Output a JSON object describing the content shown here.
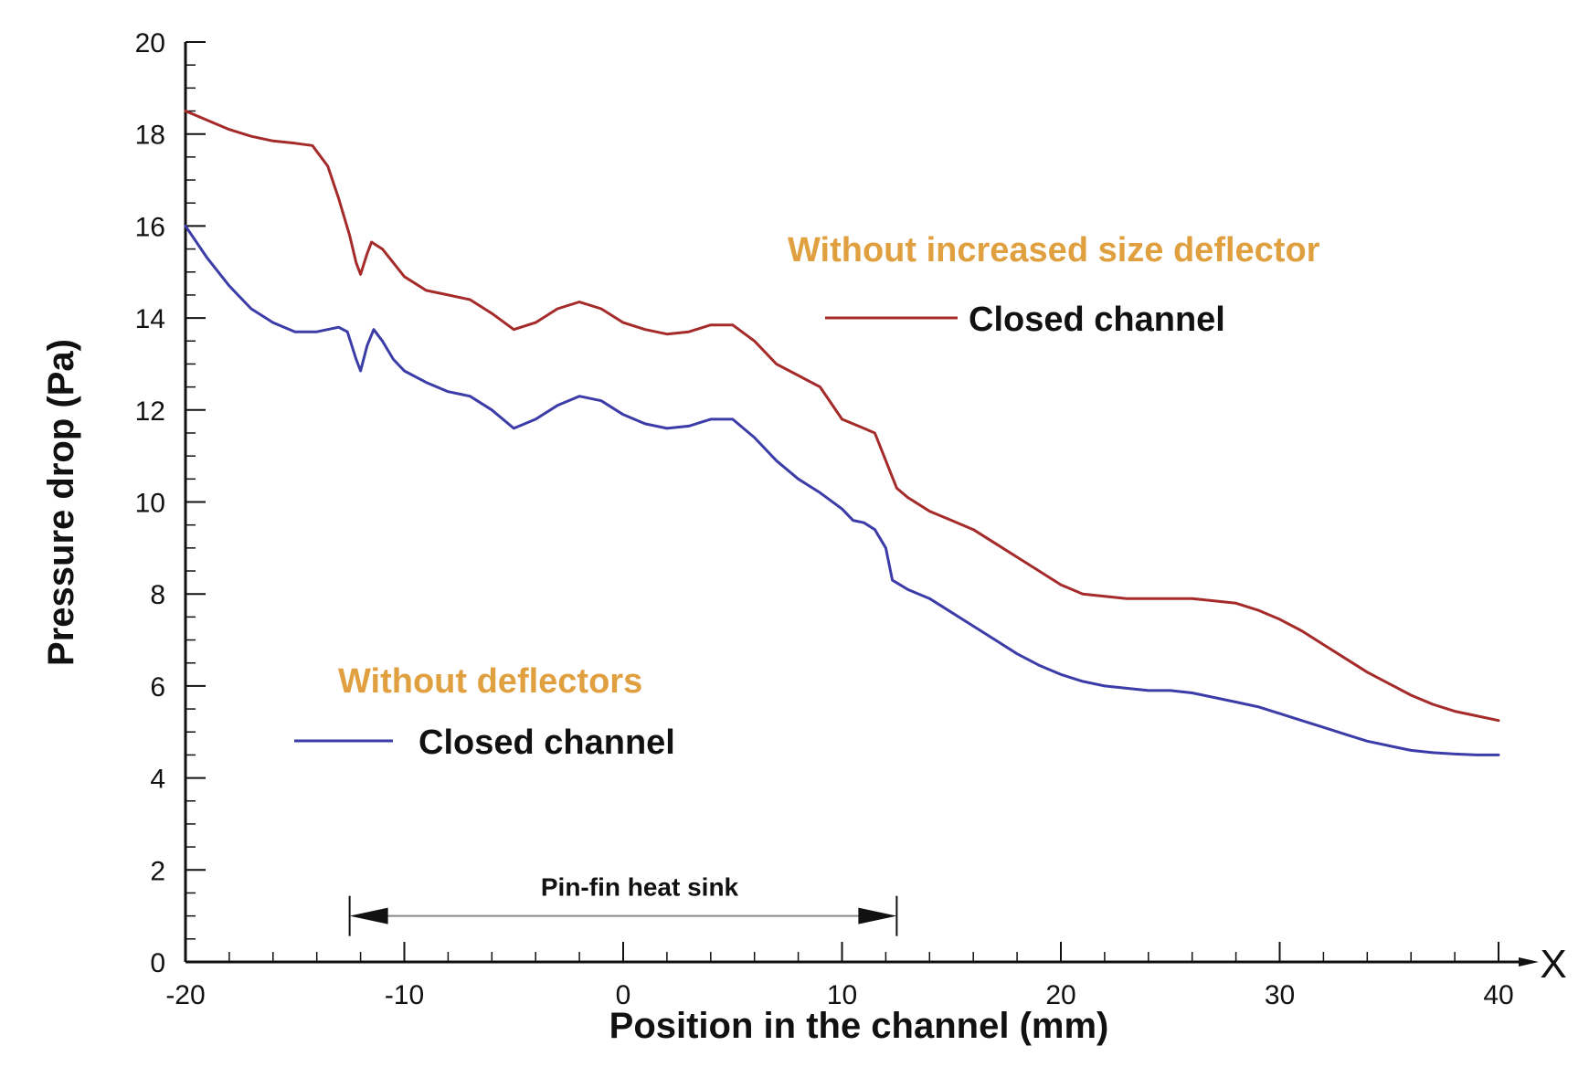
{
  "chart_data": {
    "type": "line",
    "xlabel": "Position in the channel (mm)",
    "ylabel": "Pressure drop (Pa)",
    "x_axis_end_label": "X",
    "xlim": [
      -20,
      40
    ],
    "ylim": [
      0,
      20
    ],
    "x_ticks": [
      -20,
      -10,
      0,
      10,
      20,
      30,
      40
    ],
    "x_tick_labels": [
      "-20",
      "-10",
      "0",
      "10",
      "20",
      "30",
      "40"
    ],
    "y_ticks": [
      0,
      2,
      4,
      6,
      8,
      10,
      12,
      14,
      16,
      18,
      20
    ],
    "y_tick_labels": [
      "0",
      "2",
      "4",
      "6",
      "8",
      "10",
      "12",
      "14",
      "16",
      "18",
      "20"
    ],
    "grid": false,
    "series": [
      {
        "name": "Closed channel",
        "group": "Without increased size deflector",
        "color": "#a52a2a",
        "points": [
          [
            -20,
            18.5
          ],
          [
            -19,
            18.3
          ],
          [
            -18,
            18.1
          ],
          [
            -17,
            17.95
          ],
          [
            -16,
            17.85
          ],
          [
            -15,
            17.8
          ],
          [
            -14.2,
            17.75
          ],
          [
            -13.5,
            17.3
          ],
          [
            -13,
            16.6
          ],
          [
            -12.5,
            15.8
          ],
          [
            -12.2,
            15.2
          ],
          [
            -12,
            14.95
          ],
          [
            -11.7,
            15.4
          ],
          [
            -11.5,
            15.65
          ],
          [
            -11,
            15.5
          ],
          [
            -10.5,
            15.2
          ],
          [
            -10,
            14.9
          ],
          [
            -9,
            14.6
          ],
          [
            -8,
            14.5
          ],
          [
            -7,
            14.4
          ],
          [
            -6,
            14.1
          ],
          [
            -5,
            13.75
          ],
          [
            -4,
            13.9
          ],
          [
            -3,
            14.2
          ],
          [
            -2,
            14.35
          ],
          [
            -1,
            14.2
          ],
          [
            0,
            13.9
          ],
          [
            1,
            13.75
          ],
          [
            2,
            13.65
          ],
          [
            3,
            13.7
          ],
          [
            4,
            13.85
          ],
          [
            5,
            13.85
          ],
          [
            6,
            13.5
          ],
          [
            7,
            13.0
          ],
          [
            8,
            12.75
          ],
          [
            9,
            12.5
          ],
          [
            10,
            11.8
          ],
          [
            10.5,
            11.7
          ],
          [
            11,
            11.6
          ],
          [
            11.5,
            11.5
          ],
          [
            12,
            10.9
          ],
          [
            12.5,
            10.3
          ],
          [
            13,
            10.1
          ],
          [
            14,
            9.8
          ],
          [
            15,
            9.6
          ],
          [
            16,
            9.4
          ],
          [
            17,
            9.1
          ],
          [
            18,
            8.8
          ],
          [
            19,
            8.5
          ],
          [
            20,
            8.2
          ],
          [
            21,
            8.0
          ],
          [
            22,
            7.95
          ],
          [
            23,
            7.9
          ],
          [
            24,
            7.9
          ],
          [
            25,
            7.9
          ],
          [
            26,
            7.9
          ],
          [
            27,
            7.85
          ],
          [
            28,
            7.8
          ],
          [
            29,
            7.65
          ],
          [
            30,
            7.45
          ],
          [
            31,
            7.2
          ],
          [
            32,
            6.9
          ],
          [
            33,
            6.6
          ],
          [
            34,
            6.3
          ],
          [
            35,
            6.05
          ],
          [
            36,
            5.8
          ],
          [
            37,
            5.6
          ],
          [
            38,
            5.45
          ],
          [
            39,
            5.35
          ],
          [
            40,
            5.25
          ]
        ]
      },
      {
        "name": "Closed channel",
        "group": "Without deflectors",
        "color": "#3c3ca8",
        "points": [
          [
            -20,
            16.0
          ],
          [
            -19,
            15.3
          ],
          [
            -18,
            14.7
          ],
          [
            -17,
            14.2
          ],
          [
            -16,
            13.9
          ],
          [
            -15,
            13.7
          ],
          [
            -14,
            13.7
          ],
          [
            -13,
            13.8
          ],
          [
            -12.6,
            13.7
          ],
          [
            -12.2,
            13.1
          ],
          [
            -12,
            12.85
          ],
          [
            -11.7,
            13.4
          ],
          [
            -11.4,
            13.75
          ],
          [
            -11,
            13.5
          ],
          [
            -10.5,
            13.1
          ],
          [
            -10,
            12.85
          ],
          [
            -9,
            12.6
          ],
          [
            -8,
            12.4
          ],
          [
            -7,
            12.3
          ],
          [
            -6,
            12.0
          ],
          [
            -5,
            11.6
          ],
          [
            -4,
            11.8
          ],
          [
            -3,
            12.1
          ],
          [
            -2,
            12.3
          ],
          [
            -1,
            12.2
          ],
          [
            0,
            11.9
          ],
          [
            1,
            11.7
          ],
          [
            2,
            11.6
          ],
          [
            3,
            11.65
          ],
          [
            4,
            11.8
          ],
          [
            5,
            11.8
          ],
          [
            6,
            11.4
          ],
          [
            7,
            10.9
          ],
          [
            8,
            10.5
          ],
          [
            9,
            10.2
          ],
          [
            10,
            9.85
          ],
          [
            10.5,
            9.6
          ],
          [
            11,
            9.55
          ],
          [
            11.5,
            9.4
          ],
          [
            12,
            9.0
          ],
          [
            12.3,
            8.3
          ],
          [
            13,
            8.1
          ],
          [
            14,
            7.9
          ],
          [
            15,
            7.6
          ],
          [
            16,
            7.3
          ],
          [
            17,
            7.0
          ],
          [
            18,
            6.7
          ],
          [
            19,
            6.45
          ],
          [
            20,
            6.25
          ],
          [
            21,
            6.1
          ],
          [
            22,
            6.0
          ],
          [
            23,
            5.95
          ],
          [
            24,
            5.9
          ],
          [
            25,
            5.9
          ],
          [
            26,
            5.85
          ],
          [
            27,
            5.75
          ],
          [
            28,
            5.65
          ],
          [
            29,
            5.55
          ],
          [
            30,
            5.4
          ],
          [
            31,
            5.25
          ],
          [
            32,
            5.1
          ],
          [
            33,
            4.95
          ],
          [
            34,
            4.8
          ],
          [
            35,
            4.7
          ],
          [
            36,
            4.6
          ],
          [
            37,
            4.55
          ],
          [
            38,
            4.52
          ],
          [
            39,
            4.5
          ],
          [
            40,
            4.5
          ]
        ]
      }
    ],
    "legend_groups": [
      {
        "title": "Without increased size deflector",
        "title_color": "#e0a040",
        "label": "Closed channel",
        "line_color": "#a52a2a",
        "placement": "upper-right"
      },
      {
        "title": "Without deflectors",
        "title_color": "#e0a040",
        "label": "Closed channel",
        "line_color": "#3c3ca8",
        "placement": "lower-left"
      }
    ],
    "annotations": [
      {
        "text": "Pin-fin heat sink",
        "x_start": -12.5,
        "x_end": 12.5,
        "y": 1.0,
        "style": "double-arrow"
      }
    ]
  }
}
